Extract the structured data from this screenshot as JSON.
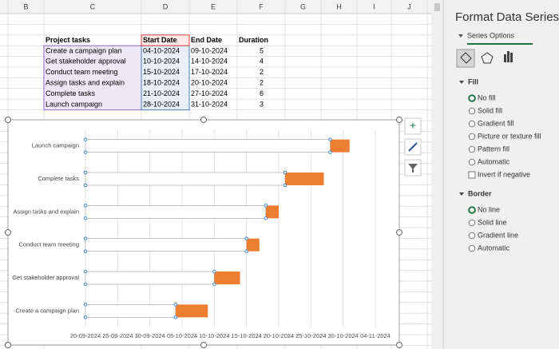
{
  "columns": [
    "B",
    "C",
    "D",
    "E",
    "F",
    "G",
    "H",
    "I",
    "J"
  ],
  "table": {
    "header": [
      "Project tasks",
      "Start Date",
      "End Date",
      "Duration"
    ],
    "rows": [
      [
        "Create a campaign plan",
        "04-10-2024",
        "09-10-2024",
        5
      ],
      [
        "Get stakeholder approval",
        "10-10-2024",
        "14-10-2024",
        4
      ],
      [
        "Conduct team meeting",
        "15-10-2024",
        "17-10-2024",
        2
      ],
      [
        "Assign tasks and explain",
        "18-10-2024",
        "20-10-2024",
        2
      ],
      [
        "Complete tasks",
        "21-10-2024",
        "27-10-2024",
        6
      ],
      [
        "Launch campaign",
        "28-10-2024",
        "31-10-2024",
        3
      ]
    ]
  },
  "chart": {
    "type": "bar",
    "orientation": "horizontal",
    "categories": [
      "Create a campaign plan",
      "Get stakeholder approval",
      "Conduct team meeting",
      "Assign tasks and explain",
      "Complete tasks",
      "Launch campaign"
    ],
    "series": [
      {
        "color": "#ffffff",
        "values": [
          45569,
          45575,
          45580,
          45583,
          45586,
          45593
        ]
      },
      {
        "color": "#ed7d31",
        "values": [
          5,
          4,
          2,
          2,
          6,
          3
        ]
      }
    ],
    "xlim": [
      45555,
      45600
    ],
    "xticks": [
      {
        "value": 45555,
        "label": "20-09-2024"
      },
      {
        "value": 45560,
        "label": "25-09-2024"
      },
      {
        "value": 45565,
        "label": "30-09-2024"
      },
      {
        "value": 45570,
        "label": "05-10-2024"
      },
      {
        "value": 45575,
        "label": "10-10-2024"
      },
      {
        "value": 45580,
        "label": "15-10-2024"
      },
      {
        "value": 45585,
        "label": "20-10-2024"
      },
      {
        "value": 45590,
        "label": "25-10-2024"
      },
      {
        "value": 45595,
        "label": "30-10-2024"
      },
      {
        "value": 45600,
        "label": "04-11-2024"
      }
    ],
    "grid": true
  },
  "pane": {
    "title": "Format Data Series",
    "tab": "Series Options",
    "fill": {
      "heading": "Fill",
      "options": [
        "No fill",
        "Solid fill",
        "Gradient fill",
        "Picture or texture fill",
        "Pattern fill",
        "Automatic"
      ],
      "checkbox": "Invert if negative"
    },
    "border": {
      "heading": "Border",
      "options": [
        "No line",
        "Solid line",
        "Gradient line",
        "Automatic"
      ]
    }
  }
}
